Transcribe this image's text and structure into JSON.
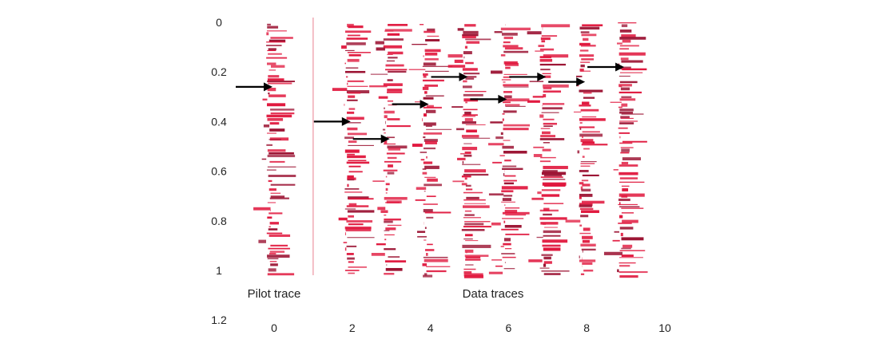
{
  "chart_data": {
    "type": "wiggle-trace",
    "title": "",
    "xlabel": "",
    "ylabel": "",
    "x_ticks": [
      "0",
      "2",
      "4",
      "6",
      "8",
      "10"
    ],
    "y_ticks": [
      "0",
      "0.2",
      "0.4",
      "0.6",
      "0.8",
      "1",
      "1.2"
    ],
    "xlim": [
      -1,
      10
    ],
    "ylim": [
      0,
      1.2
    ],
    "y_inverted": true,
    "grid": false,
    "trace_color": "#e0163c",
    "arrow_color": "#000000",
    "divider_color": "#e88090",
    "divider_x": 1,
    "pilot_trace": {
      "x": 0,
      "pick_time": 0.26
    },
    "data_traces": [
      {
        "x": 2,
        "pick_time": 0.4
      },
      {
        "x": 3,
        "pick_time": 0.47
      },
      {
        "x": 4,
        "pick_time": 0.33
      },
      {
        "x": 5,
        "pick_time": 0.22
      },
      {
        "x": 6,
        "pick_time": 0.31
      },
      {
        "x": 7,
        "pick_time": 0.22
      },
      {
        "x": 8,
        "pick_time": 0.24
      },
      {
        "x": 9,
        "pick_time": 0.18
      }
    ],
    "trace_time_range": [
      0,
      1.02
    ],
    "annotations": {
      "pilot_label": "Pilot trace",
      "data_label": "Data traces"
    }
  }
}
